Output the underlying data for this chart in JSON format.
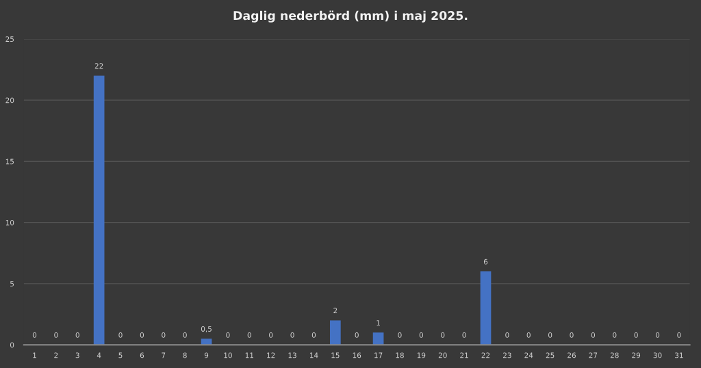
{
  "chart_data": {
    "type": "bar",
    "title": "Daglig nederbörd (mm) i maj 2025.",
    "categories": [
      "1",
      "2",
      "3",
      "4",
      "5",
      "6",
      "7",
      "8",
      "9",
      "10",
      "11",
      "12",
      "13",
      "14",
      "15",
      "16",
      "17",
      "18",
      "19",
      "20",
      "21",
      "22",
      "23",
      "24",
      "25",
      "26",
      "27",
      "28",
      "29",
      "30",
      "31"
    ],
    "values": [
      0,
      0,
      0,
      22,
      0,
      0,
      0,
      0,
      0.5,
      0,
      0,
      0,
      0,
      0,
      2,
      0,
      1,
      0,
      0,
      0,
      0,
      6,
      0,
      0,
      0,
      0,
      0,
      0,
      0,
      0,
      0
    ],
    "value_labels": [
      "0",
      "0",
      "0",
      "22",
      "0",
      "0",
      "0",
      "0",
      "0,5",
      "0",
      "0",
      "0",
      "0",
      "0",
      "2",
      "0",
      "1",
      "0",
      "0",
      "0",
      "0",
      "6",
      "0",
      "0",
      "0",
      "0",
      "0",
      "0",
      "0",
      "0",
      "0"
    ],
    "color": "#4472c4",
    "ylim": [
      0,
      25
    ],
    "yticks": [
      0,
      5,
      10,
      15,
      20,
      25
    ],
    "grid": "y"
  }
}
